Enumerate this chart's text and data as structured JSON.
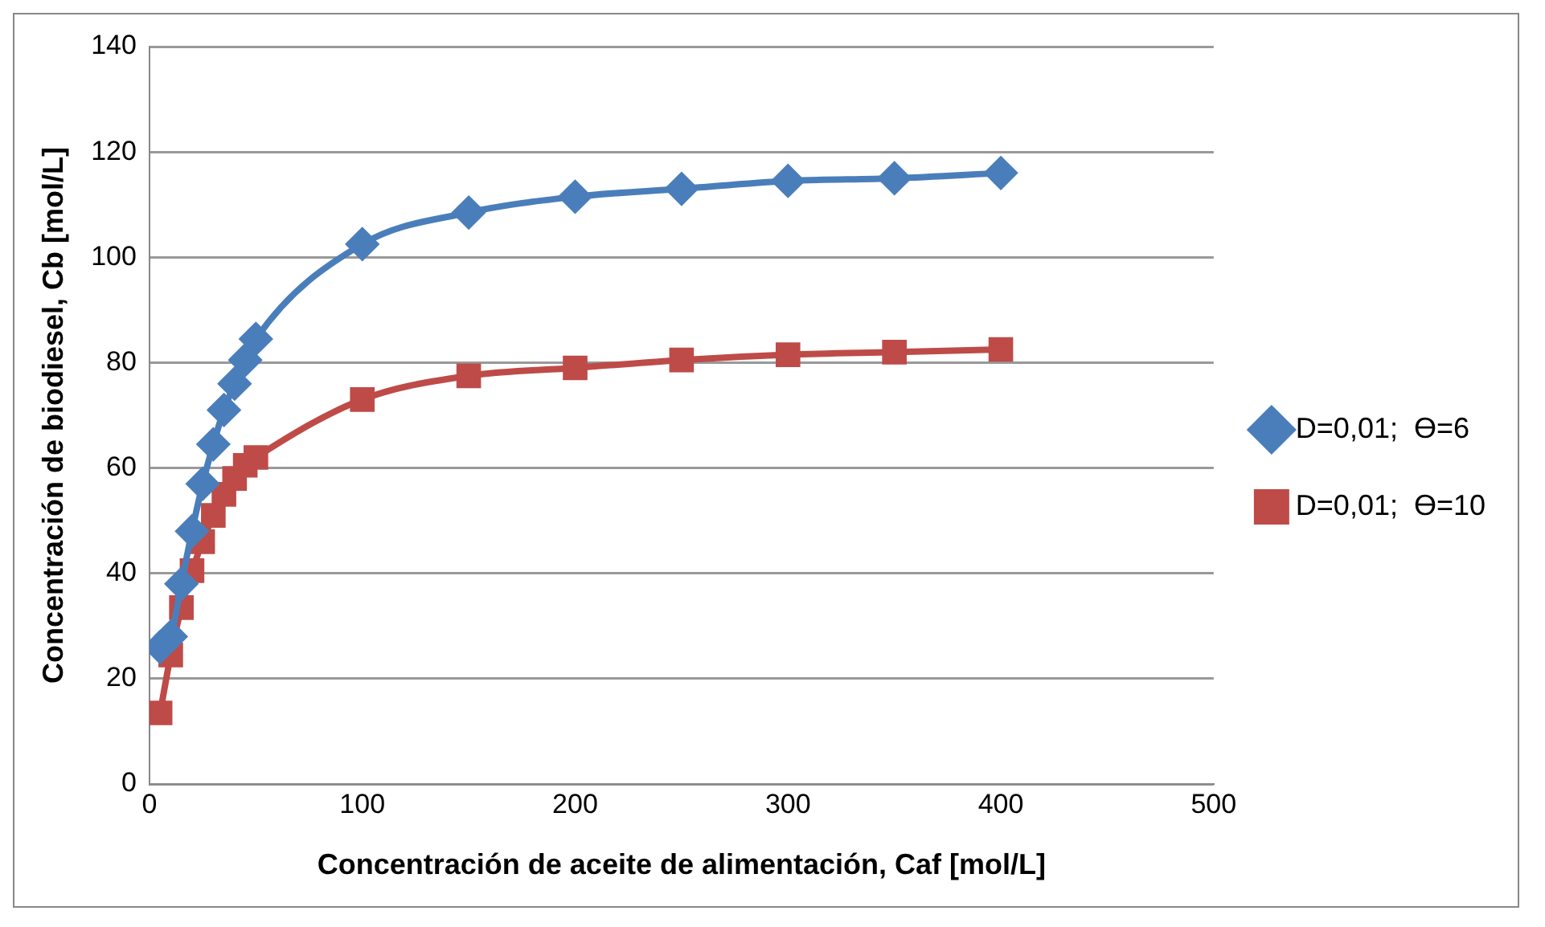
{
  "chart_data": {
    "type": "line",
    "xlabel": "Concentración de aceite de alimentación, Caf [mol/L]",
    "ylabel": "Concentración de biodiesel, Cb [mol/L]",
    "x": [
      5,
      10,
      15,
      20,
      25,
      30,
      35,
      40,
      45,
      50,
      100,
      150,
      200,
      250,
      300,
      350,
      400
    ],
    "series": [
      {
        "name": "D=0,01;  Ɵ=6",
        "color": "#4a7ebb",
        "marker": "diamond",
        "values": [
          26,
          28,
          38,
          48,
          57,
          64.5,
          71,
          76,
          80.5,
          84.5,
          102.5,
          108.5,
          111.5,
          113,
          114.5,
          115,
          116
        ]
      },
      {
        "name": "D=0,01;  Ɵ=10",
        "color": "#be4b48",
        "marker": "square",
        "values": [
          13.5,
          24.5,
          33.5,
          40.5,
          46,
          51,
          55,
          58,
          60.5,
          62,
          73,
          77.5,
          79,
          80.5,
          81.5,
          82,
          82.5
        ]
      }
    ],
    "xlim": [
      0,
      500
    ],
    "xticks": [
      0,
      100,
      200,
      300,
      400,
      500
    ],
    "ylim": [
      0,
      140
    ],
    "yticks": [
      0,
      20,
      40,
      60,
      80,
      100,
      120,
      140
    ],
    "grid": "y",
    "legend": "right"
  }
}
